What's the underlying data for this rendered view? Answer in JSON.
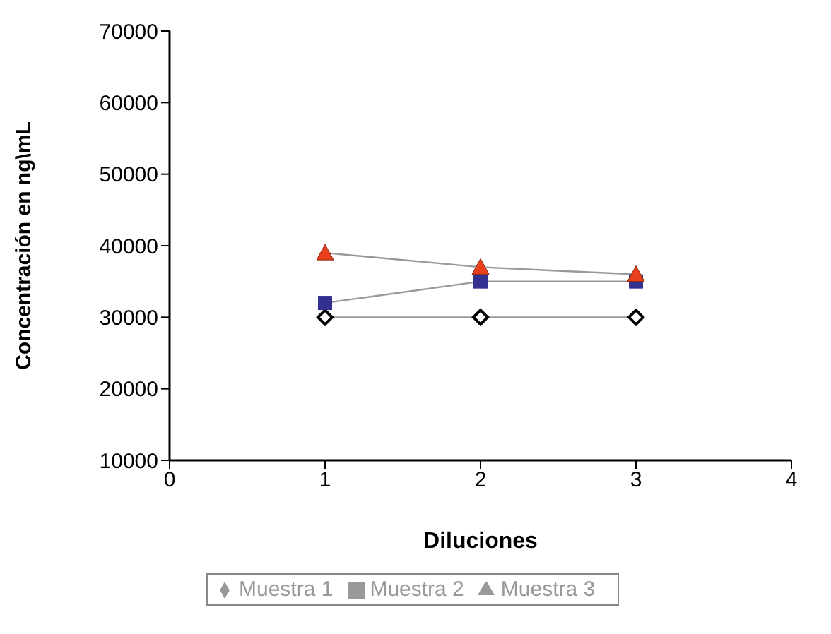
{
  "chart_data": {
    "type": "line",
    "xlabel": "Diluciones",
    "ylabel": "Concentración en ng\\mL",
    "x": [
      1,
      2,
      3
    ],
    "series": [
      {
        "name": "Muestra 1",
        "color": "#000000",
        "marker": "diamond",
        "values": [
          30000,
          30000,
          30000
        ]
      },
      {
        "name": "Muestra 2",
        "color": "#33308f",
        "marker": "square",
        "values": [
          32000,
          35000,
          35000
        ]
      },
      {
        "name": "Muestra 3",
        "color": "#e8401c",
        "marker": "triangle",
        "values": [
          39000,
          37000,
          36000
        ]
      }
    ],
    "xlim": [
      0,
      4
    ],
    "xticks": [
      0,
      1,
      2,
      3,
      4
    ],
    "ylim": [
      10000,
      70000
    ],
    "yticks": [
      10000,
      20000,
      30000,
      40000,
      50000,
      60000,
      70000
    ],
    "grid": false,
    "legend": "bottom"
  }
}
